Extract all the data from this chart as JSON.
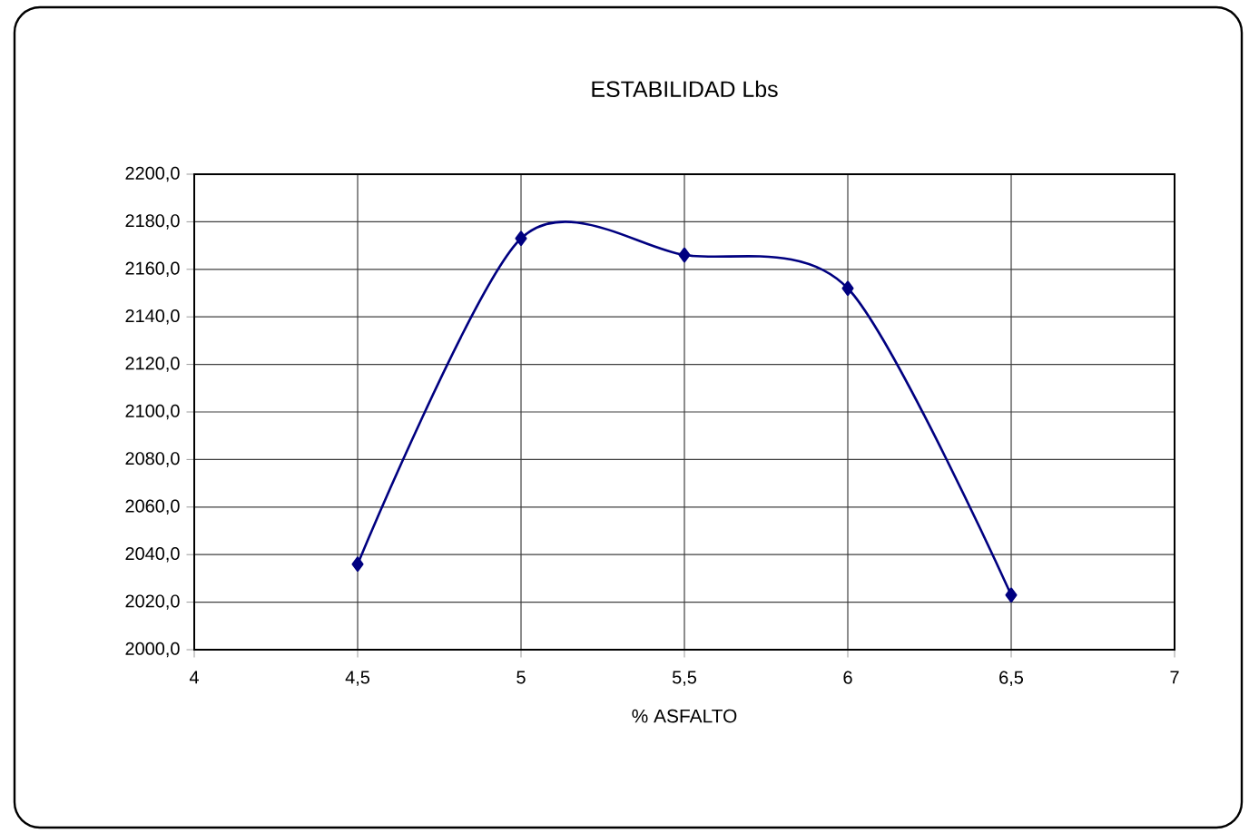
{
  "chart_data": {
    "type": "line",
    "title": "ESTABILIDAD Lbs",
    "xlabel": "% ASFALTO",
    "x": [
      4.5,
      5,
      5.5,
      6,
      6.5
    ],
    "series": [
      {
        "color": "#000080",
        "values": [
          2036,
          2173,
          2166,
          2152,
          2023
        ]
      }
    ],
    "xlim": [
      4,
      7
    ],
    "xticks": [
      4,
      {
        "value": 4.5,
        "label": "4,5"
      },
      5,
      {
        "value": 5.5,
        "label": "5,5"
      },
      6,
      {
        "value": 6.5,
        "label": "6,5"
      },
      7
    ],
    "ylim": [
      2000,
      2200
    ],
    "yticks": [
      {
        "value": 2000,
        "label": "2000,0"
      },
      {
        "value": 2020,
        "label": "2020,0"
      },
      {
        "value": 2040,
        "label": "2040,0"
      },
      {
        "value": 2060,
        "label": "2060,0"
      },
      {
        "value": 2080,
        "label": "2080,0"
      },
      {
        "value": 2100,
        "label": "2100,0"
      },
      {
        "value": 2120,
        "label": "2120,0"
      },
      {
        "value": 2140,
        "label": "2140,0"
      },
      {
        "value": 2160,
        "label": "2160,0"
      },
      {
        "value": 2180,
        "label": "2180,0"
      },
      {
        "value": 2200,
        "label": "2200,0"
      }
    ],
    "grid": true,
    "marker": "diamond",
    "line_style": "solid"
  }
}
